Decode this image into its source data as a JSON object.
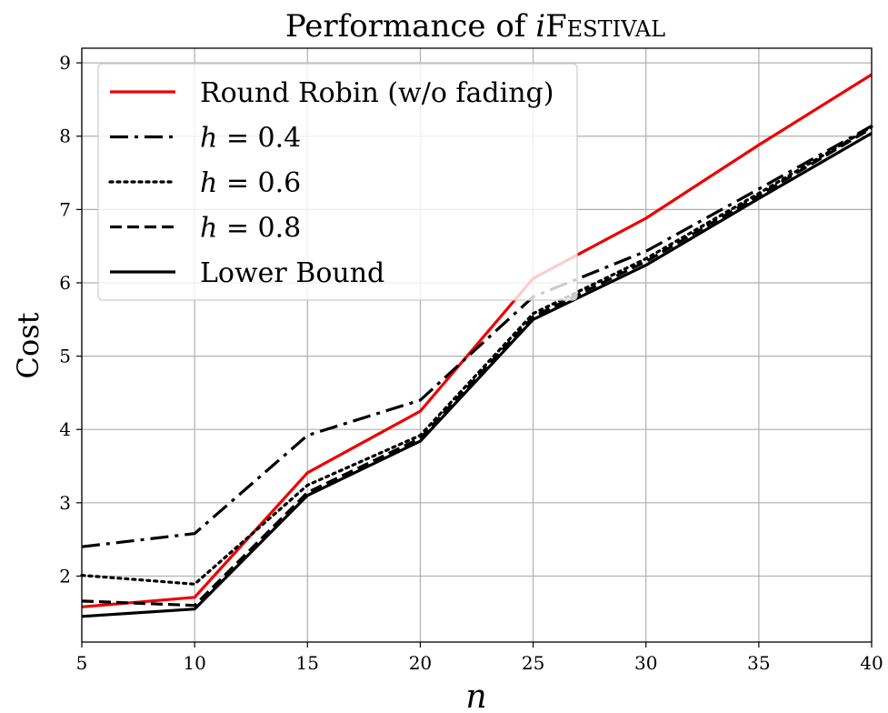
{
  "chart_data": {
    "type": "line",
    "title": "Performance of iFestival",
    "title_parts": {
      "italic_prefix": "i",
      "smallcaps_word": "Festival"
    },
    "xlabel": "n",
    "ylabel": "Cost",
    "x": [
      5,
      10,
      15,
      20,
      25,
      30,
      35,
      40
    ],
    "xlim": [
      5,
      40
    ],
    "ylim": [
      1.1,
      9.2
    ],
    "xticks": [
      5,
      10,
      15,
      20,
      25,
      30,
      35,
      40
    ],
    "yticks": [
      2,
      3,
      4,
      5,
      6,
      7,
      8,
      9
    ],
    "grid": true,
    "legend_position": "top-left",
    "series": [
      {
        "name": "Round Robin (w/o fading)",
        "name_math": false,
        "style": "solid",
        "color": "#ee0000",
        "values": [
          1.58,
          1.71,
          3.41,
          4.25,
          6.06,
          6.88,
          7.88,
          8.84
        ]
      },
      {
        "name": "h = 0.4",
        "name_math": true,
        "style": "dashdot",
        "color": "#000000",
        "values": [
          2.4,
          2.58,
          3.92,
          4.4,
          5.81,
          6.43,
          7.28,
          8.14
        ]
      },
      {
        "name": "h = 0.6",
        "name_math": true,
        "style": "dotted",
        "color": "#000000",
        "values": [
          2.01,
          1.89,
          3.24,
          3.92,
          5.58,
          6.33,
          7.22,
          8.13
        ]
      },
      {
        "name": "h = 0.8",
        "name_math": true,
        "style": "dashed",
        "color": "#000000",
        "values": [
          1.66,
          1.6,
          3.14,
          3.88,
          5.54,
          6.29,
          7.19,
          8.11
        ]
      },
      {
        "name": "Lower Bound",
        "name_math": false,
        "style": "solid",
        "color": "#000000",
        "values": [
          1.45,
          1.55,
          3.1,
          3.84,
          5.5,
          6.24,
          7.15,
          8.04
        ]
      }
    ]
  }
}
